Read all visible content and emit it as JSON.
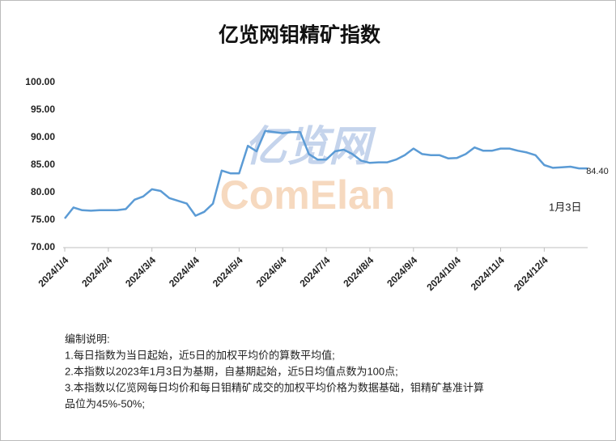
{
  "chart_data": {
    "type": "line",
    "title": "亿览网钼精矿指数",
    "categories": [
      "2024/1/4",
      null,
      null,
      null,
      null,
      "2024/2/4",
      null,
      null,
      null,
      null,
      "2024/3/4",
      null,
      null,
      null,
      null,
      "2024/4/4",
      null,
      null,
      null,
      null,
      "2024/5/4",
      null,
      null,
      null,
      null,
      "2024/6/4",
      null,
      null,
      null,
      null,
      "2024/7/4",
      null,
      null,
      null,
      null,
      "2024/8/4",
      null,
      null,
      null,
      null,
      "2024/9/4",
      null,
      null,
      null,
      null,
      "2024/10/4",
      null,
      null,
      null,
      null,
      "2024/11/4",
      null,
      null,
      null,
      null,
      "2024/12/4",
      null,
      null,
      null,
      null,
      null
    ],
    "values": [
      75.3,
      77.3,
      76.8,
      76.7,
      76.8,
      76.8,
      76.8,
      77.0,
      78.7,
      79.3,
      80.6,
      80.3,
      79.0,
      78.5,
      78.0,
      75.8,
      76.5,
      78.0,
      84.0,
      83.5,
      83.5,
      88.5,
      87.5,
      91.2,
      91.0,
      90.8,
      91.0,
      91.0,
      87.0,
      86.0,
      86.0,
      87.5,
      87.8,
      87.0,
      85.8,
      85.4,
      85.5,
      85.5,
      86.0,
      86.8,
      88.0,
      87.0,
      86.8,
      86.8,
      86.2,
      86.3,
      87.0,
      88.2,
      87.6,
      87.6,
      88.0,
      88.0,
      87.6,
      87.3,
      86.8,
      85.0,
      84.5,
      84.6,
      84.7,
      84.4,
      84.4
    ],
    "value_labels": [
      null,
      null,
      null,
      null,
      null,
      null,
      null,
      null,
      null,
      null,
      null,
      null,
      null,
      null,
      null,
      null,
      null,
      null,
      null,
      null,
      null,
      null,
      null,
      null,
      null,
      null,
      null,
      null,
      null,
      null,
      null,
      null,
      null,
      null,
      null,
      null,
      null,
      null,
      null,
      null,
      null,
      null,
      null,
      null,
      null,
      null,
      null,
      null,
      null,
      null,
      null,
      null,
      null,
      null,
      null,
      null,
      null,
      null,
      null,
      null,
      "84.40"
    ],
    "color": "#5b9bd5",
    "ylim": [
      70,
      100
    ],
    "yticks": [
      {
        "value": 70,
        "label": "70.00"
      },
      {
        "value": 75,
        "label": "75.00"
      },
      {
        "value": 80,
        "label": "80.00"
      },
      {
        "value": 85,
        "label": "85.00"
      },
      {
        "value": 90,
        "label": "90.00"
      },
      {
        "value": 95,
        "label": "95.00"
      },
      {
        "value": 100,
        "label": "100.00"
      }
    ],
    "grid": false,
    "annotation": "1月3日",
    "watermark": [
      "亿览网",
      "ComElan"
    ]
  },
  "notes": {
    "heading": "编制说明:",
    "lines": [
      "1.每日指数为当日起始，近5日的加权平均价的算数平均值;",
      "2.本指数以2023年1月3日为基期，自基期起始，近5日均值点数为100点;",
      "3.本指数以亿览网每日均价和每日钼精矿成交的加权平均价格为数据基础，钼精矿基准计算",
      "品位为45%-50%;"
    ]
  }
}
